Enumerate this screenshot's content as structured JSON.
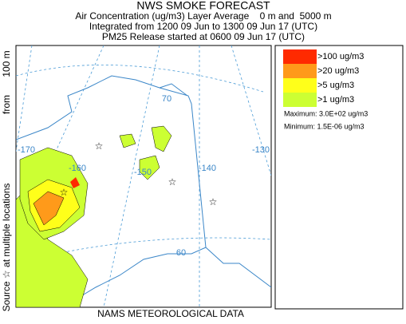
{
  "header": {
    "title": "NWS SMOKE FORECAST",
    "lines": [
      "Air Concentration (ug/m3) Layer Average    0 m and  5000 m",
      "Integrated from 1200 09 Jun to 1300 09 Jun 17 (UTC)",
      "PM25 Release started at 0600 09 Jun 17 (UTC)"
    ]
  },
  "side_label": [
    "Source ☆ at multiple locations",
    "from",
    "100 m"
  ],
  "footer": "NAMS METEOROLOGICAL DATA",
  "map": {
    "grid_labels": [
      "70",
      "-170",
      "-160",
      "-150",
      "-140",
      "-130",
      "60"
    ]
  },
  "legend": {
    "items": [
      {
        "label": ">100 ug/m3",
        "color": "#ff2a00"
      },
      {
        "label": ">20 ug/m3",
        "color": "#ff9a1a"
      },
      {
        "label": ">5 ug/m3",
        "color": "#ffff1a"
      },
      {
        "label": ">1 ug/m3",
        "color": "#ccff33"
      }
    ],
    "maximum": "Maximum: 3.0E+02 ug/m3",
    "minimum": "Minimum: 1.5E-06 ug/m3"
  }
}
